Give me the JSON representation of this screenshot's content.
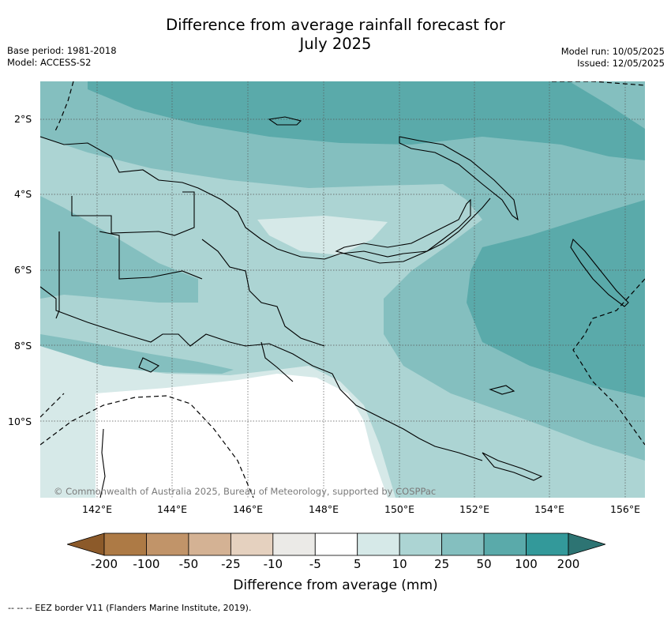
{
  "header": {
    "title_line1": "Difference from average rainfall forecast for",
    "title_line2": "July 2025",
    "base_period": "Base period: 1981-2018",
    "model": "Model: ACCESS-S2",
    "model_run": "Model run: 10/05/2025",
    "issued": "Issued: 12/05/2025"
  },
  "map": {
    "copyright": "© Commonwealth of Australia 2025, Bureau of Meteorology, supported by COSPPac",
    "lat_labels": [
      "2°S",
      "4°S",
      "6°S",
      "8°S",
      "10°S"
    ],
    "lon_labels": [
      "142°E",
      "144°E",
      "146°E",
      "148°E",
      "150°E",
      "152°E",
      "154°E",
      "156°E"
    ]
  },
  "colorbar": {
    "ticks": [
      "-200",
      "-100",
      "-50",
      "-25",
      "-10",
      "-5",
      "5",
      "10",
      "25",
      "50",
      "100",
      "200"
    ],
    "colors": [
      "#8c5a2a",
      "#ad7a45",
      "#c19469",
      "#d4b294",
      "#e5d1bf",
      "#ebeae7",
      "#ffffff",
      "#d6e9e8",
      "#acd4d3",
      "#84bfbf",
      "#5aaaaa",
      "#33999a",
      "#2d7473"
    ],
    "label": "Difference from average (mm)"
  },
  "footnote": "-- -- -- EEZ border V11 (Flanders Marine Institute, 2019)."
}
